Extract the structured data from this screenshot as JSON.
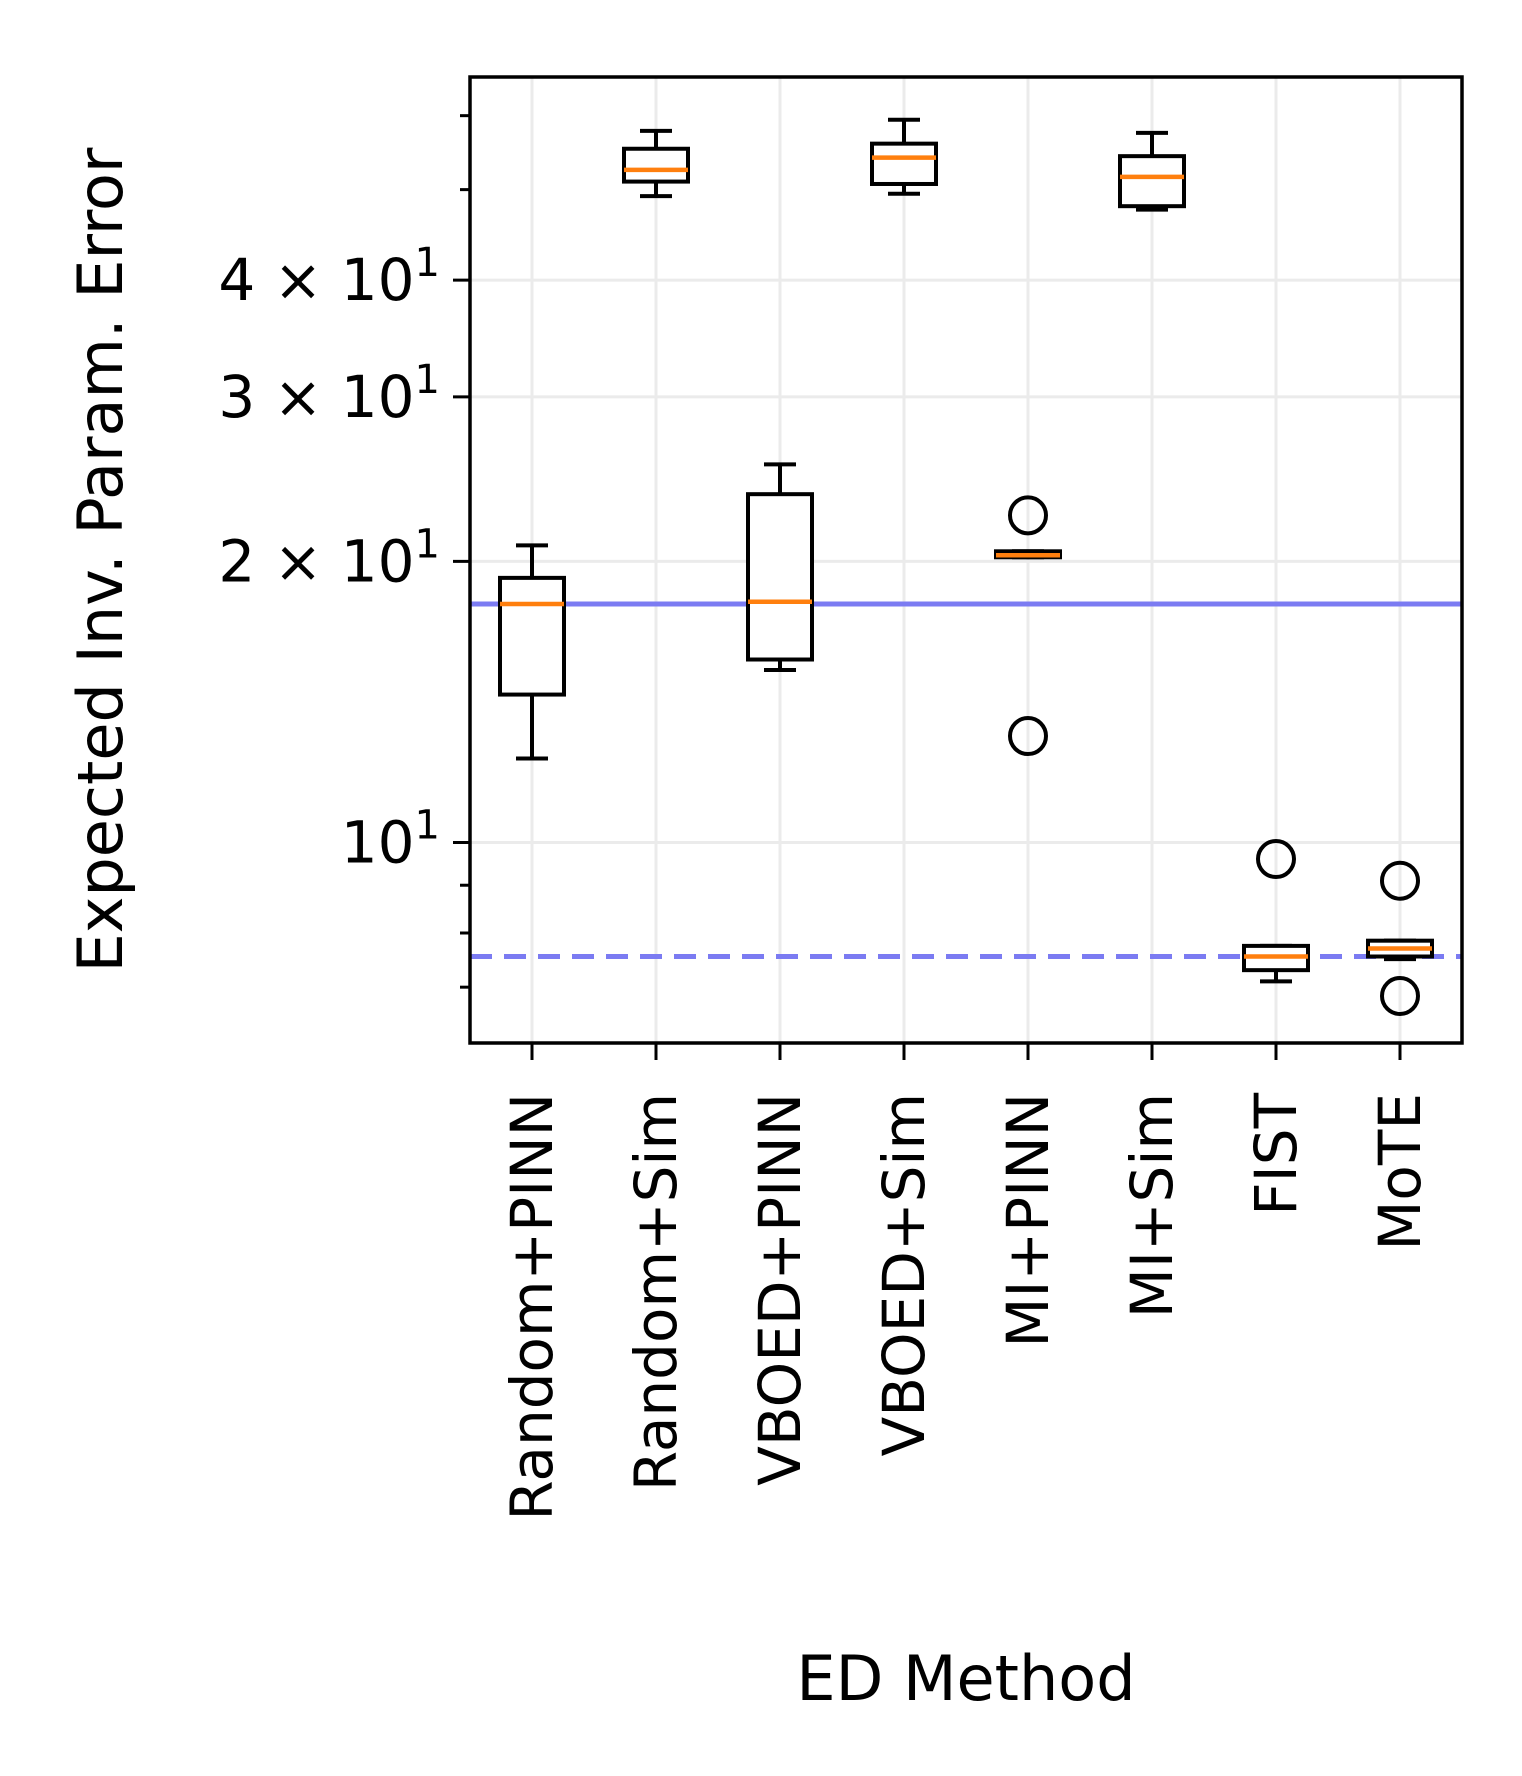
{
  "chart_data": {
    "type": "box",
    "title": "",
    "xlabel": "ED Method",
    "ylabel": "Expected Inv. Param. Error",
    "yscale": "log",
    "ylim": [
      6.1,
      66
    ],
    "grid": true,
    "categories": [
      "Random+PINN",
      "Random+Sim",
      "VBOED+PINN",
      "VBOED+Sim",
      "MI+PINN",
      "MI+Sim",
      "FIST",
      "MoTE"
    ],
    "boxes": [
      {
        "whislo": 12.3,
        "q1": 14.4,
        "med": 18.0,
        "q3": 19.2,
        "whishi": 20.8,
        "fliers": []
      },
      {
        "whislo": 49.2,
        "q1": 51.0,
        "med": 52.5,
        "q3": 55.3,
        "whishi": 57.8,
        "fliers": []
      },
      {
        "whislo": 15.3,
        "q1": 15.7,
        "med": 18.1,
        "q3": 23.6,
        "whishi": 25.4,
        "fliers": []
      },
      {
        "whislo": 49.5,
        "q1": 50.7,
        "med": 54.1,
        "q3": 56.0,
        "whishi": 59.4,
        "fliers": []
      },
      {
        "whislo": 20.2,
        "q1": 20.2,
        "med": 20.3,
        "q3": 20.5,
        "whishi": 20.5,
        "fliers": [
          13.0,
          22.4
        ]
      },
      {
        "whislo": 47.6,
        "q1": 48.0,
        "med": 51.6,
        "q3": 54.3,
        "whishi": 57.5,
        "fliers": []
      },
      {
        "whislo": 7.1,
        "q1": 7.3,
        "med": 7.55,
        "q3": 7.75,
        "whishi": 7.75,
        "fliers": [
          9.6
        ]
      },
      {
        "whislo": 7.5,
        "q1": 7.55,
        "med": 7.7,
        "q3": 7.85,
        "whishi": 7.85,
        "fliers": [
          6.85,
          9.1
        ]
      }
    ],
    "yticks_major": [
      {
        "value": 10,
        "label_base": "10",
        "label_exp": "1",
        "label_prefix": ""
      },
      {
        "value": 20,
        "label_base": "10",
        "label_exp": "1",
        "label_prefix": "2 × "
      },
      {
        "value": 30,
        "label_base": "10",
        "label_exp": "1",
        "label_prefix": "3 × "
      },
      {
        "value": 40,
        "label_base": "10",
        "label_exp": "1",
        "label_prefix": "4 × "
      }
    ],
    "yticks_minor": [
      7,
      8,
      9,
      50,
      60
    ],
    "reference_lines": [
      {
        "value": 18.0,
        "style": "solid",
        "color": "#7b7bf2"
      },
      {
        "value": 7.55,
        "style": "dashed",
        "color": "#7b7bf2"
      }
    ],
    "colors": {
      "box": "#000000",
      "median": "#ff7f0e",
      "grid": "#ebebeb"
    }
  }
}
